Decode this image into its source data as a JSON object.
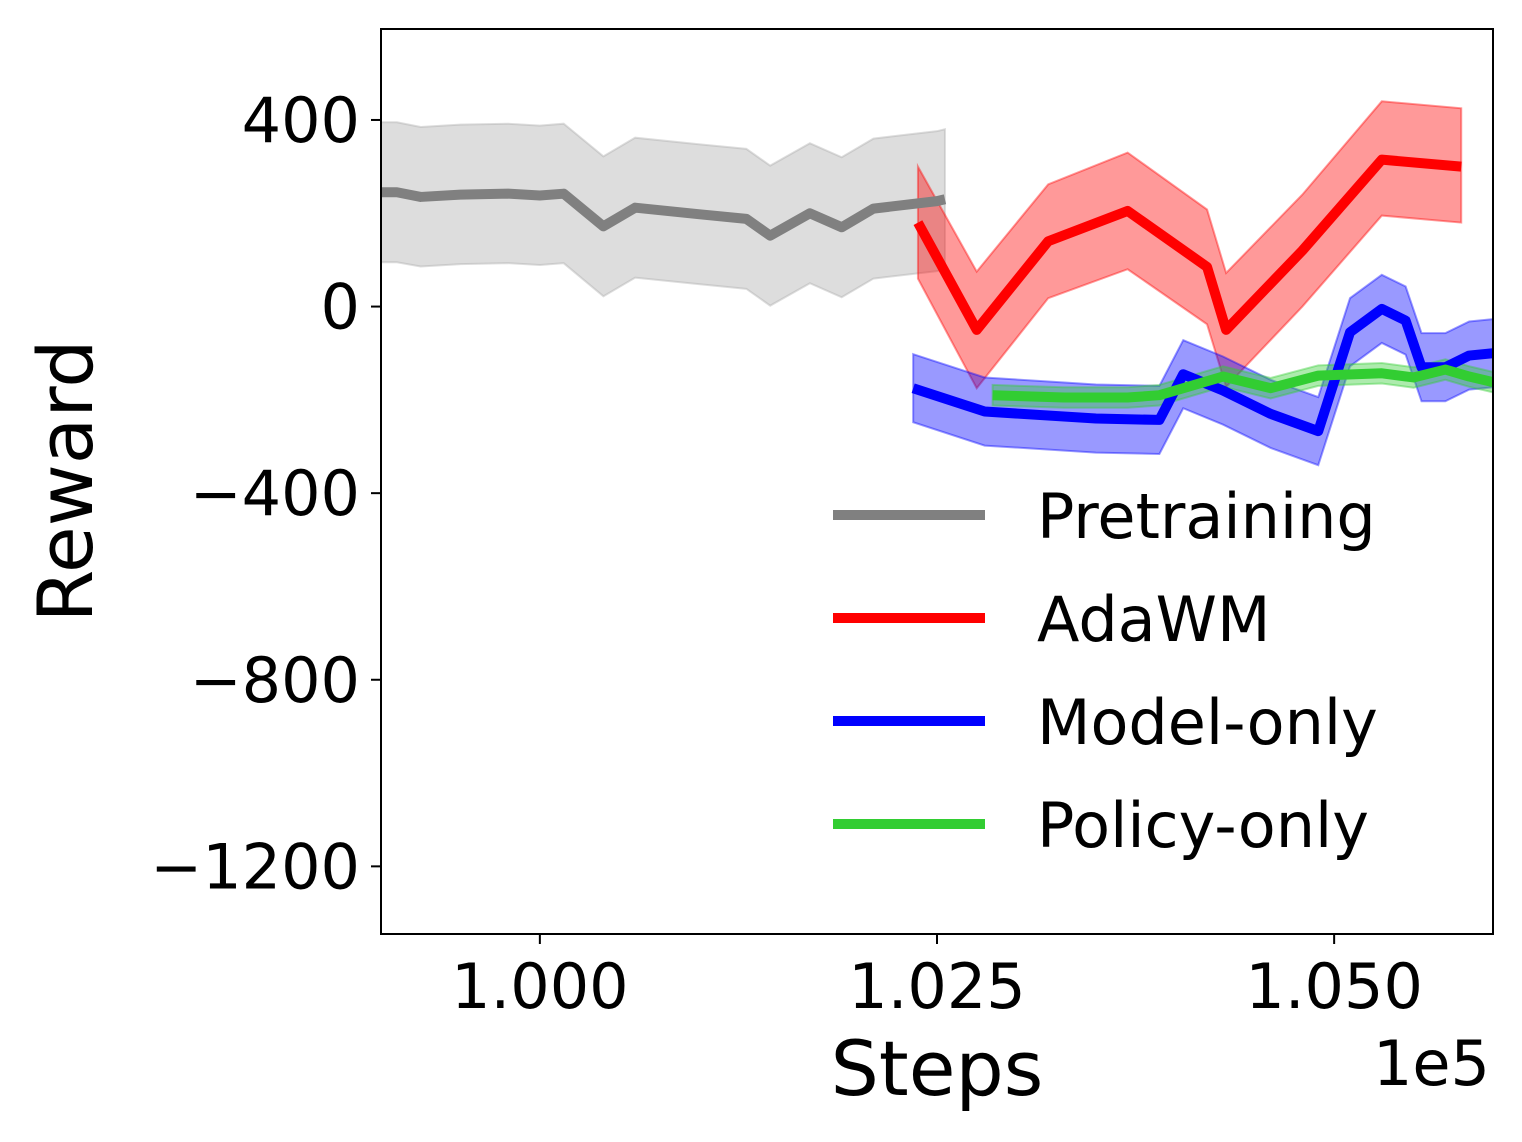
{
  "chart_data": {
    "type": "line",
    "xlabel": "Steps",
    "ylabel": "Reward",
    "x_offset_label": "1e5",
    "xlim": [
      99000,
      106000
    ],
    "ylim": [
      -1345,
      595
    ],
    "xticks": [
      100000,
      102500,
      105000
    ],
    "xtick_labels": [
      "1.000",
      "1.025",
      "1.050"
    ],
    "yticks": [
      400,
      0,
      -400,
      -800,
      -1200
    ],
    "ytick_labels": [
      "400",
      "0",
      "−400",
      "−800",
      "−1200"
    ],
    "grid": false,
    "legend_position": "lower-right",
    "series": [
      {
        "name": "Pretraining",
        "color": "#808080",
        "band_color": "#a9a9a9",
        "x": [
          99000,
          99100,
          99250,
          99500,
          99800,
          100000,
          100150,
          100400,
          100600,
          101000,
          101300,
          101450,
          101700,
          101900,
          102100,
          102500,
          102550
        ],
        "y": [
          245,
          245,
          235,
          240,
          242,
          238,
          242,
          172,
          212,
          198,
          188,
          152,
          200,
          170,
          210,
          226,
          230
        ],
        "lower": [
          95,
          95,
          86,
          91,
          93,
          89,
          93,
          22,
          62,
          48,
          38,
          2,
          50,
          20,
          60,
          76,
          80
        ],
        "upper": [
          395,
          395,
          385,
          390,
          392,
          388,
          392,
          322,
          362,
          348,
          338,
          302,
          350,
          320,
          360,
          376,
          380
        ]
      },
      {
        "name": "AdaWM",
        "color": "#ff0000",
        "band_color": "#ff0000",
        "x": [
          102380,
          102750,
          103200,
          103700,
          104200,
          104320,
          104800,
          105300,
          105800
        ],
        "y": [
          180,
          -50,
          140,
          205,
          85,
          -50,
          120,
          315,
          300
        ],
        "lower": [
          60,
          -175,
          18,
          80,
          -38,
          -172,
          0,
          195,
          180
        ],
        "upper": [
          300,
          75,
          262,
          330,
          208,
          72,
          240,
          440,
          425
        ]
      },
      {
        "name": "Model-only",
        "color": "#0000ff",
        "band_color": "#0000ff",
        "x": [
          102350,
          102800,
          103500,
          103900,
          104050,
          104300,
          104600,
          104900,
          105100,
          105300,
          105450,
          105550,
          105700,
          105850,
          106000
        ],
        "y": [
          -175,
          -225,
          -240,
          -243,
          -145,
          -180,
          -230,
          -267,
          -55,
          -5,
          -30,
          -130,
          -130,
          -105,
          -100
        ],
        "lower": [
          -248,
          -298,
          -313,
          -316,
          -218,
          -253,
          -303,
          -340,
          -128,
          -78,
          -103,
          -203,
          -203,
          -178,
          -173
        ],
        "upper": [
          -102,
          -152,
          -167,
          -170,
          -72,
          -107,
          -157,
          -194,
          18,
          68,
          43,
          -57,
          -57,
          -32,
          -27
        ]
      },
      {
        "name": "Policy-only",
        "color": "#32cd32",
        "band_color": "#32cd32",
        "x": [
          102850,
          103300,
          103700,
          103900,
          104300,
          104600,
          104900,
          105300,
          105500,
          105700,
          105850,
          106000
        ],
        "y": [
          -190,
          -195,
          -195,
          -190,
          -150,
          -175,
          -148,
          -143,
          -152,
          -135,
          -150,
          -162
        ],
        "lower": [
          -212,
          -217,
          -217,
          -212,
          -172,
          -197,
          -170,
          -165,
          -174,
          -157,
          -172,
          -184
        ],
        "upper": [
          -168,
          -173,
          -173,
          -168,
          -128,
          -153,
          -126,
          -121,
          -130,
          -113,
          -128,
          -140
        ]
      }
    ]
  }
}
